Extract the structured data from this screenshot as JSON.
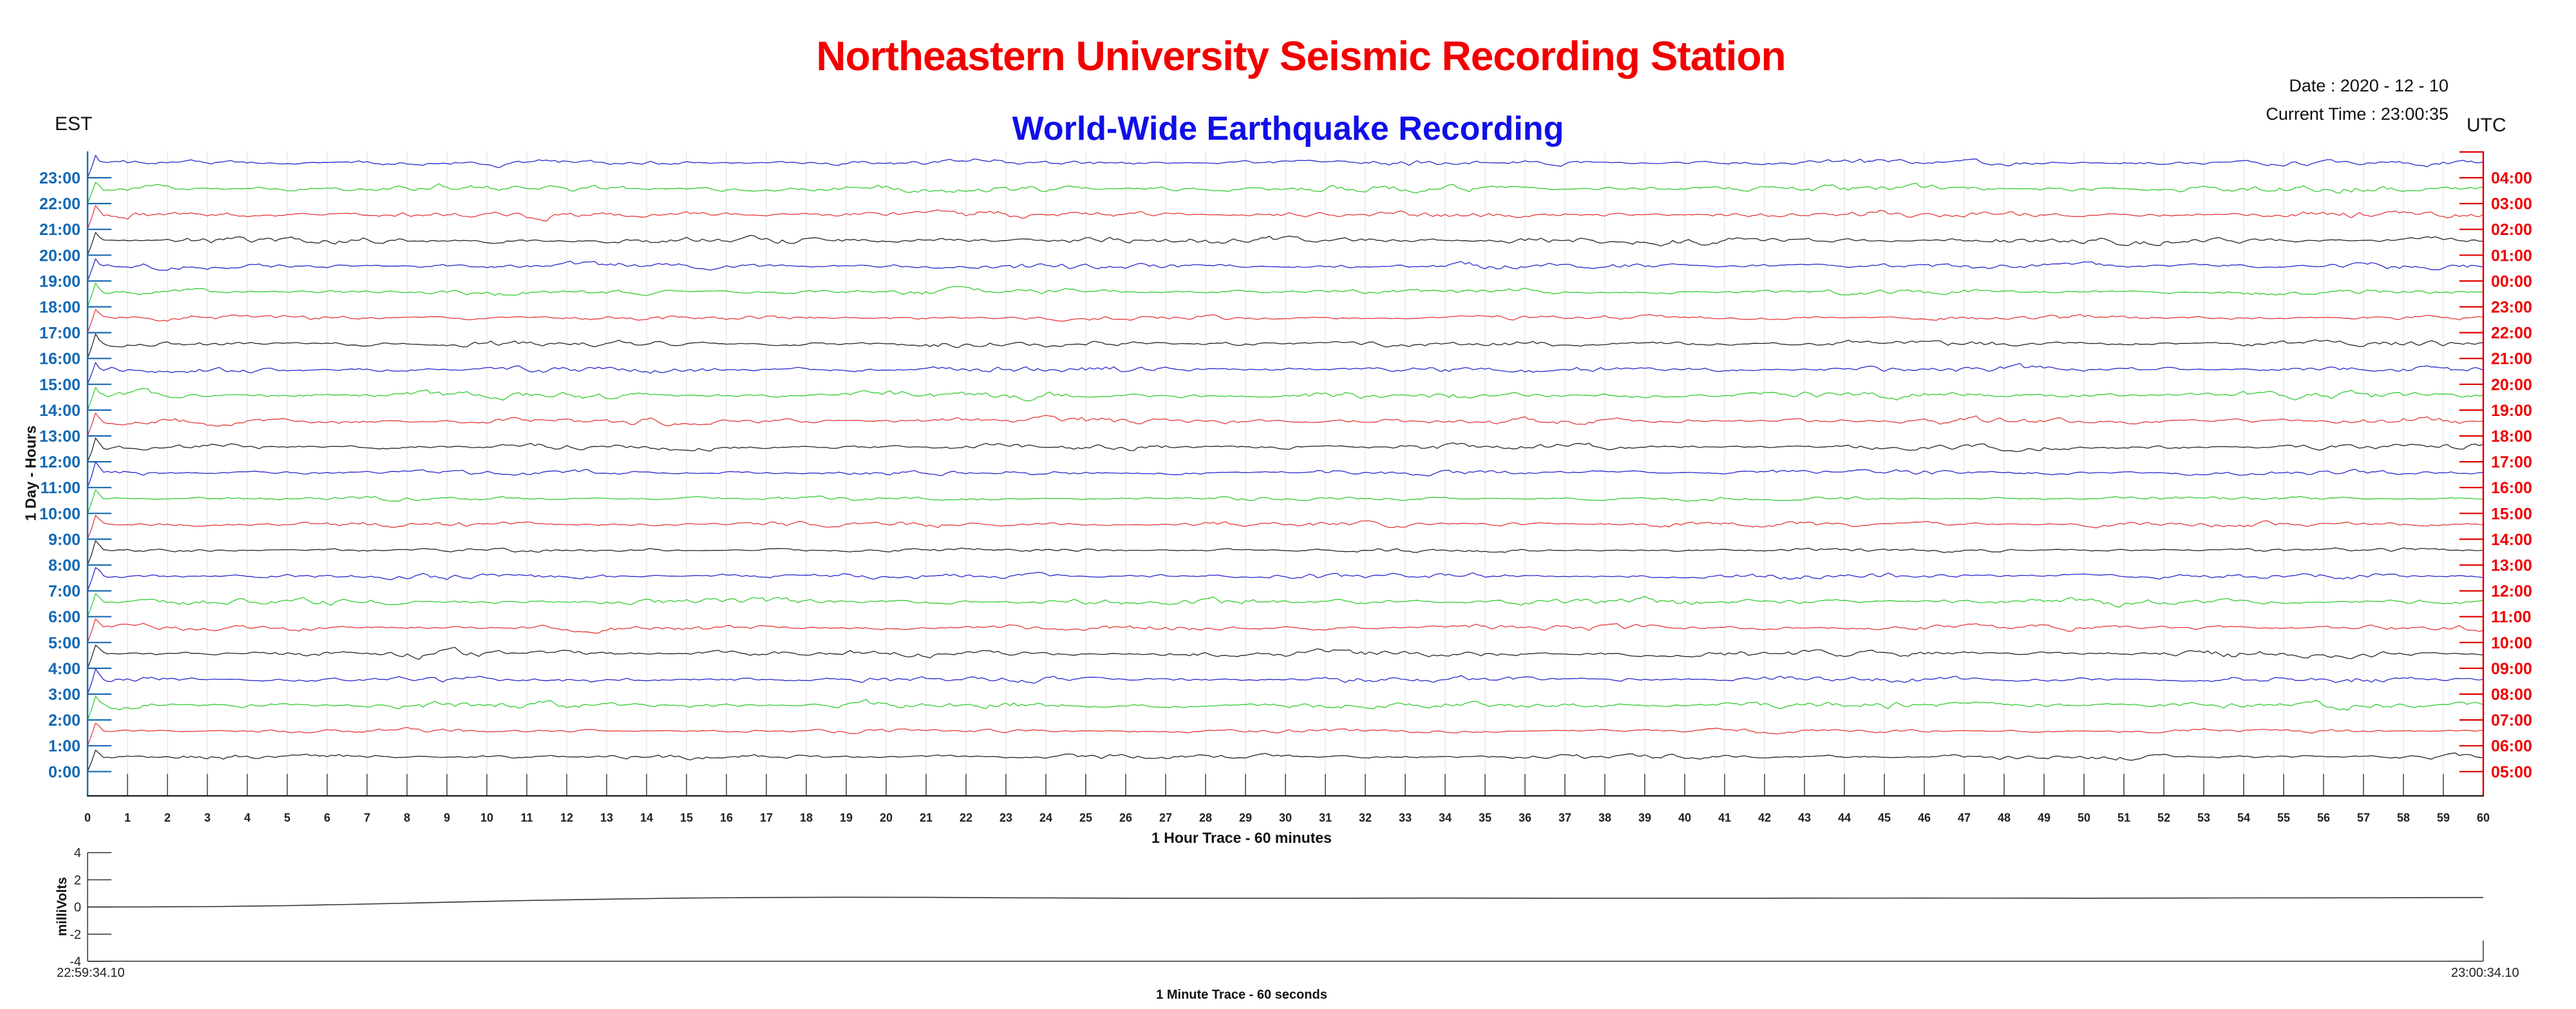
{
  "header": {
    "title": "Northeastern University Seismic Recording Station",
    "subtitle": "World-Wide Earthquake Recording",
    "date_line": "Date : 2020 - 12 - 10",
    "time_line": "Current Time : 23:00:35",
    "left_timezone": "EST",
    "right_timezone": "UTC",
    "title_color": "#f20000",
    "subtitle_color": "#0f0fe8"
  },
  "chart_data": [
    {
      "type": "helicorder",
      "description": "24 one-hour ambient seismic noise traces; one row per hour, newest hour (23:00 EST / 04:00 UTC) at top; each trace steps up from its baseline at minute 0 and wiggles around a raised plateau for 60 minutes",
      "xlabel": "1 Hour Trace - 60 minutes",
      "ylabel": "1 Day - Hours",
      "x_range_minutes": [
        0,
        60
      ],
      "x_ticks": [
        0,
        1,
        2,
        3,
        4,
        5,
        6,
        7,
        8,
        9,
        10,
        11,
        12,
        13,
        14,
        15,
        16,
        17,
        18,
        19,
        20,
        21,
        22,
        23,
        24,
        25,
        26,
        27,
        28,
        29,
        30,
        31,
        32,
        33,
        34,
        35,
        36,
        37,
        38,
        39,
        40,
        41,
        42,
        43,
        44,
        45,
        46,
        47,
        48,
        49,
        50,
        51,
        52,
        53,
        54,
        55,
        56,
        57,
        58,
        59,
        60
      ],
      "grid": true,
      "left_axis_color": "#1b6aad",
      "right_axis_color": "#dd0000",
      "est_label_color": "#1569b4",
      "utc_label_color": "#ee0000",
      "gridline_color": "#e7e7e7",
      "minute_tick_color": "#4d4d4d",
      "trace_color_by_hour_mod4": {
        "0": "#262626",
        "1": "#e63939",
        "2": "#33cc33",
        "3": "#2929cc"
      },
      "rows": [
        {
          "est": "23:00",
          "utc": "04:00",
          "color": "#2929cc"
        },
        {
          "est": "22:00",
          "utc": "03:00",
          "color": "#33cc33"
        },
        {
          "est": "21:00",
          "utc": "02:00",
          "color": "#e63939"
        },
        {
          "est": "20:00",
          "utc": "01:00",
          "color": "#262626"
        },
        {
          "est": "19:00",
          "utc": "00:00",
          "color": "#2929cc"
        },
        {
          "est": "18:00",
          "utc": "23:00",
          "color": "#33cc33"
        },
        {
          "est": "17:00",
          "utc": "22:00",
          "color": "#e63939"
        },
        {
          "est": "16:00",
          "utc": "21:00",
          "color": "#262626"
        },
        {
          "est": "15:00",
          "utc": "20:00",
          "color": "#2929cc"
        },
        {
          "est": "14:00",
          "utc": "19:00",
          "color": "#33cc33"
        },
        {
          "est": "13:00",
          "utc": "18:00",
          "color": "#e63939"
        },
        {
          "est": "12:00",
          "utc": "17:00",
          "color": "#262626"
        },
        {
          "est": "11:00",
          "utc": "16:00",
          "color": "#2929cc"
        },
        {
          "est": "10:00",
          "utc": "15:00",
          "color": "#33cc33"
        },
        {
          "est": "9:00",
          "utc": "14:00",
          "color": "#e63939"
        },
        {
          "est": "8:00",
          "utc": "13:00",
          "color": "#262626"
        },
        {
          "est": "7:00",
          "utc": "12:00",
          "color": "#2929cc"
        },
        {
          "est": "6:00",
          "utc": "11:00",
          "color": "#33cc33"
        },
        {
          "est": "5:00",
          "utc": "10:00",
          "color": "#e63939"
        },
        {
          "est": "4:00",
          "utc": "09:00",
          "color": "#262626"
        },
        {
          "est": "3:00",
          "utc": "08:00",
          "color": "#2929cc"
        },
        {
          "est": "2:00",
          "utc": "07:00",
          "color": "#33cc33"
        },
        {
          "est": "1:00",
          "utc": "06:00",
          "color": "#e63939"
        },
        {
          "est": "0:00",
          "utc": "05:00",
          "color": "#262626"
        }
      ]
    },
    {
      "type": "line",
      "xlabel": "1 Minute Trace  - 60 seconds",
      "ylabel": "milliVolts",
      "ylim": [
        -4,
        4
      ],
      "y_ticks": [
        4,
        2,
        0,
        -2,
        -4
      ],
      "x_start_label": "22:59:34.10",
      "x_end_label": "23:00:34.10",
      "x_duration_seconds": 60,
      "line_color": "#333333",
      "points_sec_mv": [
        [
          0,
          0.0
        ],
        [
          1.5,
          0.01
        ],
        [
          3,
          0.03
        ],
        [
          5,
          0.1
        ],
        [
          7,
          0.22
        ],
        [
          9,
          0.35
        ],
        [
          11,
          0.48
        ],
        [
          13,
          0.58
        ],
        [
          15,
          0.66
        ],
        [
          17,
          0.7
        ],
        [
          19,
          0.72
        ],
        [
          21,
          0.71
        ],
        [
          23,
          0.68
        ],
        [
          26,
          0.65
        ],
        [
          30,
          0.64
        ],
        [
          34,
          0.66
        ],
        [
          38,
          0.64
        ],
        [
          42,
          0.65
        ],
        [
          46,
          0.66
        ],
        [
          50,
          0.65
        ],
        [
          54,
          0.67
        ],
        [
          57,
          0.68
        ],
        [
          60,
          0.7
        ]
      ]
    }
  ]
}
